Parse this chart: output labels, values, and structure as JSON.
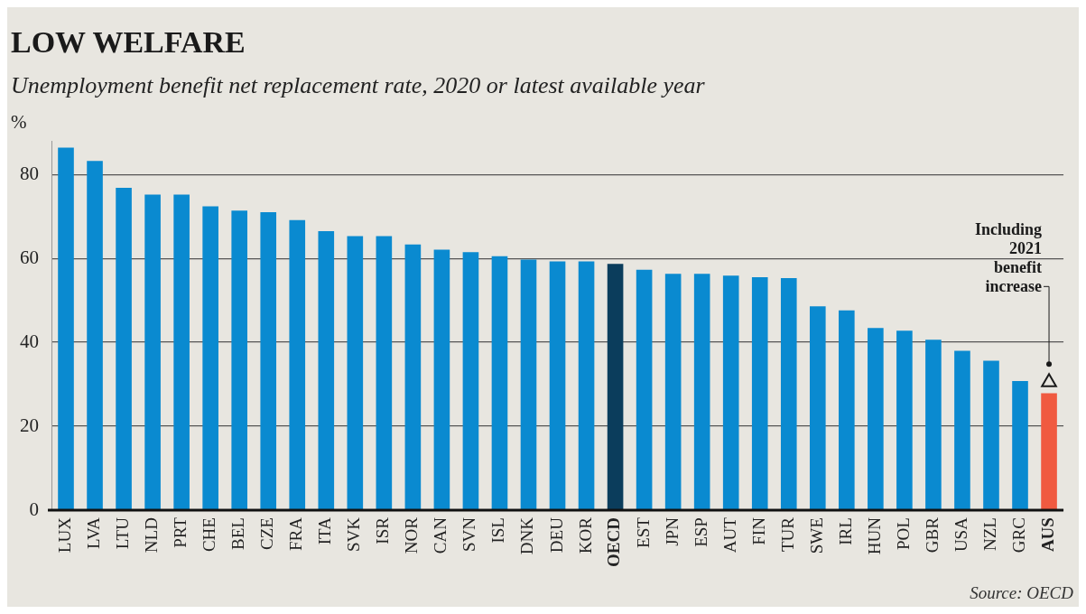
{
  "chart_data": {
    "type": "bar",
    "title": "LOW WELFARE",
    "subtitle": "Unemployment benefit net replacement rate, 2020 or latest available year",
    "ylabel": "%",
    "categories": [
      "LUX",
      "LVA",
      "LTU",
      "NLD",
      "PRT",
      "CHE",
      "BEL",
      "CZE",
      "FRA",
      "ITA",
      "SVK",
      "ISR",
      "NOR",
      "CAN",
      "SVN",
      "ISL",
      "DNK",
      "DEU",
      "KOR",
      "OECD",
      "EST",
      "JPN",
      "ESP",
      "AUT",
      "FIN",
      "TUR",
      "SWE",
      "IRL",
      "HUN",
      "POL",
      "GBR",
      "USA",
      "NZL",
      "GRC",
      "AUS"
    ],
    "series": [
      {
        "values": [
          86.4,
          83.2,
          76.8,
          75.2,
          75.2,
          72.4,
          71.4,
          71.0,
          69.1,
          66.5,
          65.3,
          65.3,
          63.3,
          62.1,
          61.5,
          60.5,
          59.7,
          59.3,
          59.3,
          58.7,
          57.3,
          56.3,
          56.3,
          55.9,
          55.5,
          55.3,
          48.6,
          47.6,
          43.4,
          42.8,
          40.6,
          38.0,
          35.6,
          30.8,
          27.9
        ],
        "colors": [
          "#0a8ad0",
          "#0a8ad0",
          "#0a8ad0",
          "#0a8ad0",
          "#0a8ad0",
          "#0a8ad0",
          "#0a8ad0",
          "#0a8ad0",
          "#0a8ad0",
          "#0a8ad0",
          "#0a8ad0",
          "#0a8ad0",
          "#0a8ad0",
          "#0a8ad0",
          "#0a8ad0",
          "#0a8ad0",
          "#0a8ad0",
          "#0a8ad0",
          "#0a8ad0",
          "#0b3d5c",
          "#0a8ad0",
          "#0a8ad0",
          "#0a8ad0",
          "#0a8ad0",
          "#0a8ad0",
          "#0a8ad0",
          "#0a8ad0",
          "#0a8ad0",
          "#0a8ad0",
          "#0a8ad0",
          "#0a8ad0",
          "#0a8ad0",
          "#0a8ad0",
          "#0a8ad0",
          "#f05a40"
        ]
      },
      {
        "type": "scatter",
        "x": [
          "AUS"
        ],
        "values": [
          30.5
        ],
        "color": "#1a1a1a"
      }
    ],
    "marker": "triangle",
    "ylim": [
      0,
      88
    ],
    "yticks": [
      0,
      20,
      40,
      60,
      80
    ],
    "grid": "y",
    "annotations": [
      {
        "text": "Including 2021 benefit increase",
        "x": "AUS",
        "y": 34.8
      },
      "Source: OECD"
    ]
  }
}
